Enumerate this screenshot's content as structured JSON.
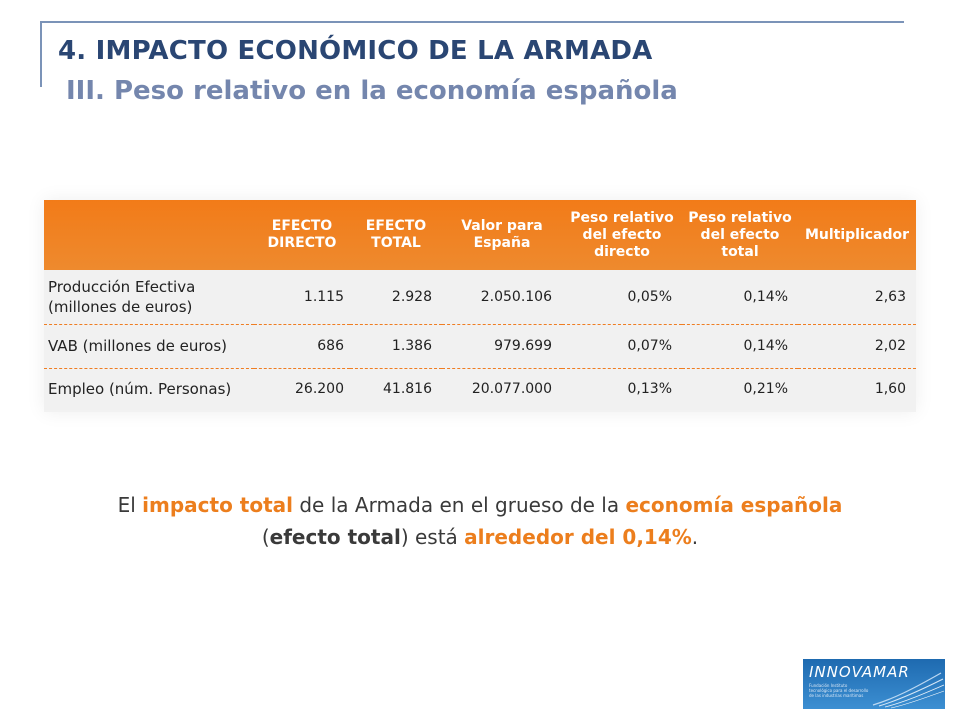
{
  "header": {
    "title": "4. IMPACTO ECONÓMICO DE LA ARMADA",
    "subtitle": "III. Peso relativo en la economía española"
  },
  "table": {
    "columns": [
      "",
      "EFECTO DIRECTO",
      "EFECTO TOTAL",
      "Valor para España",
      "Peso relativo del efecto directo",
      "Peso relativo del efecto total",
      "Multiplicador"
    ],
    "rows": [
      {
        "label": "Producción Efectiva (millones de euros)",
        "values": [
          "1.115",
          "2.928",
          "2.050.106",
          "0,05%",
          "0,14%",
          "2,63"
        ]
      },
      {
        "label": "VAB (millones de euros)",
        "values": [
          "686",
          "1.386",
          "979.699",
          "0,07%",
          "0,14%",
          "2,02"
        ]
      },
      {
        "label": "Empleo (núm. Personas)",
        "values": [
          "26.200",
          "41.816",
          "20.077.000",
          "0,13%",
          "0,21%",
          "1,60"
        ]
      }
    ]
  },
  "statement": {
    "t1": "El ",
    "h1": "impacto total",
    "t2": " de la Armada en el grueso de la ",
    "h2": "economía española",
    "t3": "(",
    "b1": "efecto total",
    "t4": ") está ",
    "h3": "alrededor del 0,14%",
    "t5": "."
  },
  "logo": {
    "name": "INNOVAMAR",
    "tagline": "Fundación Instituto tecnológico para el desarrollo de las industrias marítimas"
  },
  "colors": {
    "accent_orange": "#ef7d22",
    "title_blue": "#2a4673",
    "subtitle_blue": "#7486ad"
  }
}
